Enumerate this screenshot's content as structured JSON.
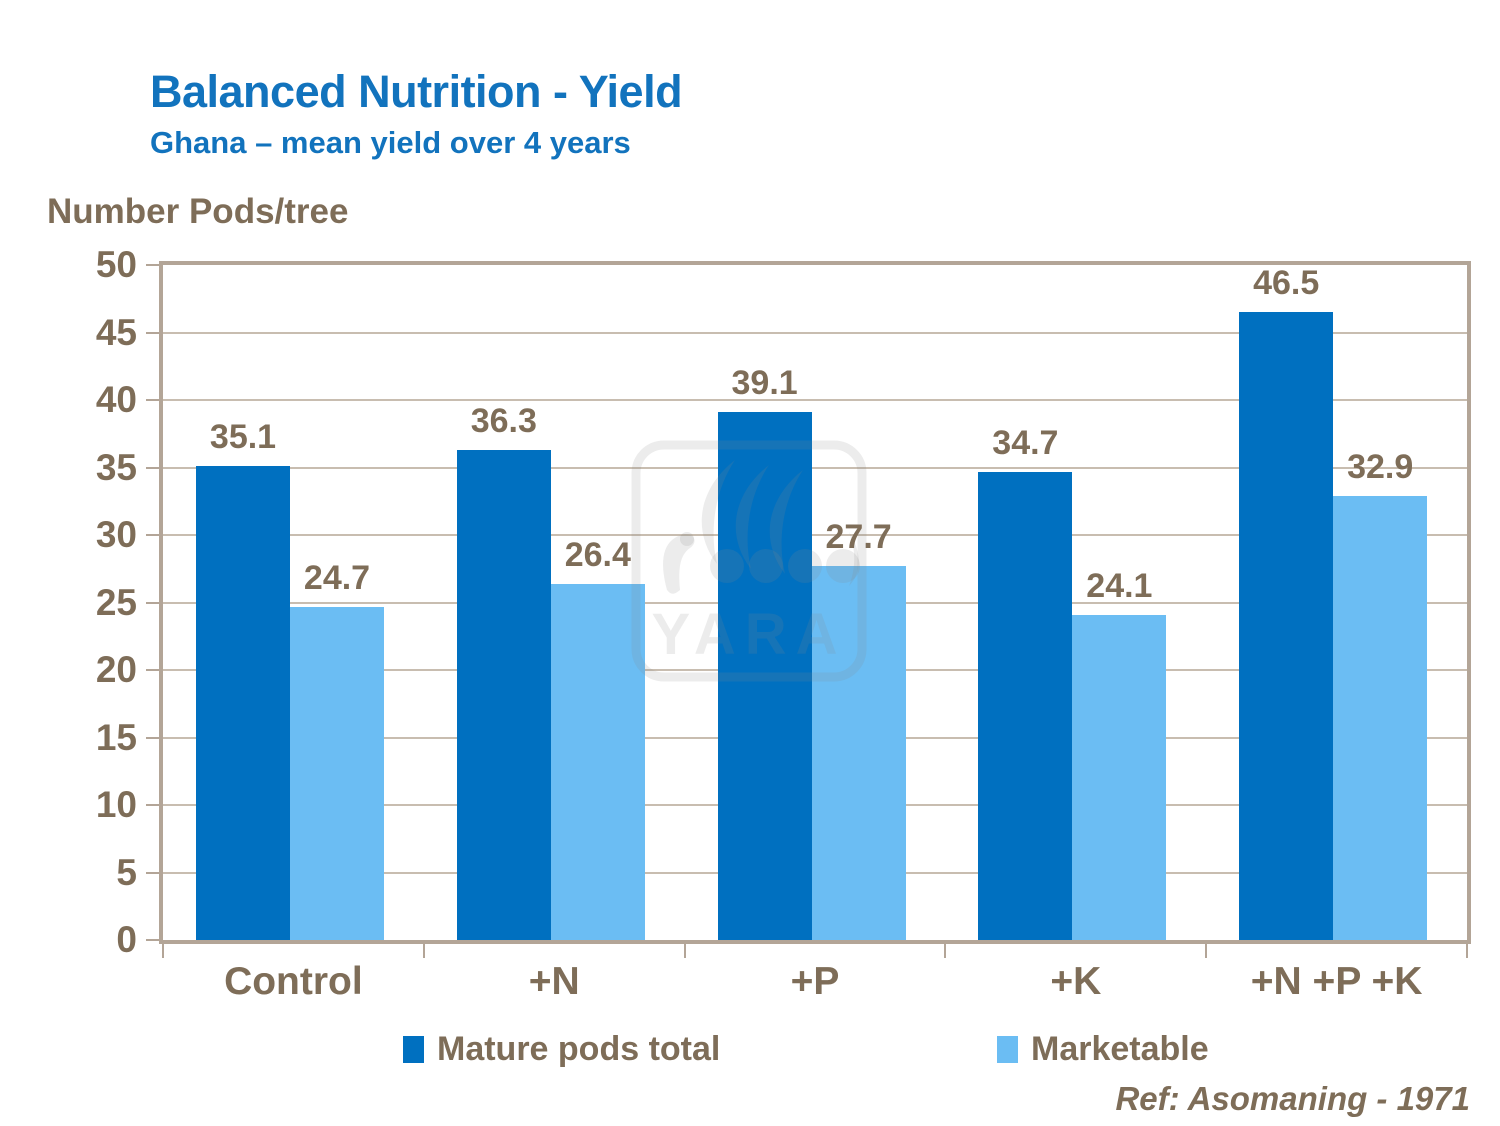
{
  "page": {
    "title": "Balanced Nutrition - Yield",
    "subtitle": "Ghana – mean yield over 4 years",
    "axis_title": "Number Pods/tree",
    "reference": "Ref: Asomaning - 1971",
    "watermark": "YARA"
  },
  "colors": {
    "title_blue": "#1273BD",
    "series1": "#0070C0",
    "series2": "#6BBDF3",
    "text_brown": "#7E6D58",
    "frame": "#B3A597",
    "gridline": "#C8BDB0",
    "watermark_gray": "rgba(135,135,135,0.16)"
  },
  "chart_data": {
    "type": "bar",
    "title": "Balanced Nutrition - Yield",
    "subtitle": "Ghana – mean yield over 4 years",
    "ylabel": "Number Pods/tree",
    "xlabel": "",
    "categories": [
      "Control",
      "+N",
      "+P",
      "+K",
      "+N +P +K"
    ],
    "series": [
      {
        "name": "Mature pods total",
        "color": "#0070C0",
        "values": [
          35.1,
          36.3,
          39.1,
          34.7,
          46.5
        ]
      },
      {
        "name": "Marketable",
        "color": "#6BBDF3",
        "values": [
          24.7,
          26.4,
          27.7,
          24.1,
          32.9
        ]
      }
    ],
    "ylim": [
      0,
      50
    ],
    "ytick_step": 5,
    "ytick_labels": [
      "0",
      "5",
      "10",
      "15",
      "20",
      "25",
      "30",
      "35",
      "40",
      "45",
      "50"
    ],
    "grid": true,
    "value_labels_shown": true,
    "legend_position": "bottom",
    "reference": "Ref: Asomaning - 1971"
  }
}
